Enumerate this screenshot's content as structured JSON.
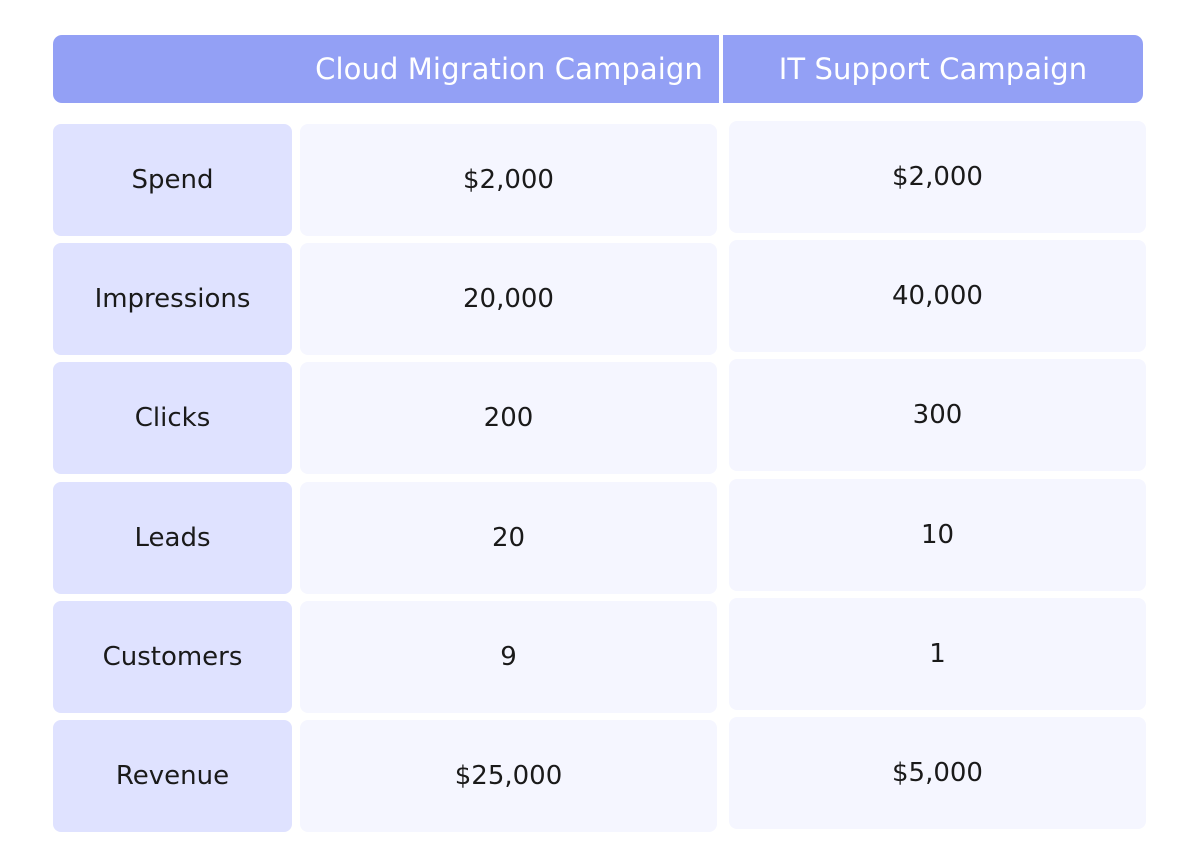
{
  "chart_data": {
    "type": "table",
    "columns": [
      "",
      "Cloud Migration Campaign",
      "IT Support Campaign"
    ],
    "rows": [
      {
        "label": "Spend",
        "values": [
          "$2,000",
          "$2,000"
        ]
      },
      {
        "label": "Impressions",
        "values": [
          "20,000",
          "40,000"
        ]
      },
      {
        "label": "Clicks",
        "values": [
          "200",
          "300"
        ]
      },
      {
        "label": "Leads",
        "values": [
          "20",
          "10"
        ]
      },
      {
        "label": "Customers",
        "values": [
          "9",
          "1"
        ]
      },
      {
        "label": "Revenue",
        "values": [
          "$25,000",
          "$5,000"
        ]
      }
    ]
  },
  "colors": {
    "header_bg": "#93a0f5",
    "header_text": "#ffffff",
    "label_bg": "#dfe2ff",
    "value_bg": "#f5f6ff",
    "text": "#1a1a1a"
  }
}
